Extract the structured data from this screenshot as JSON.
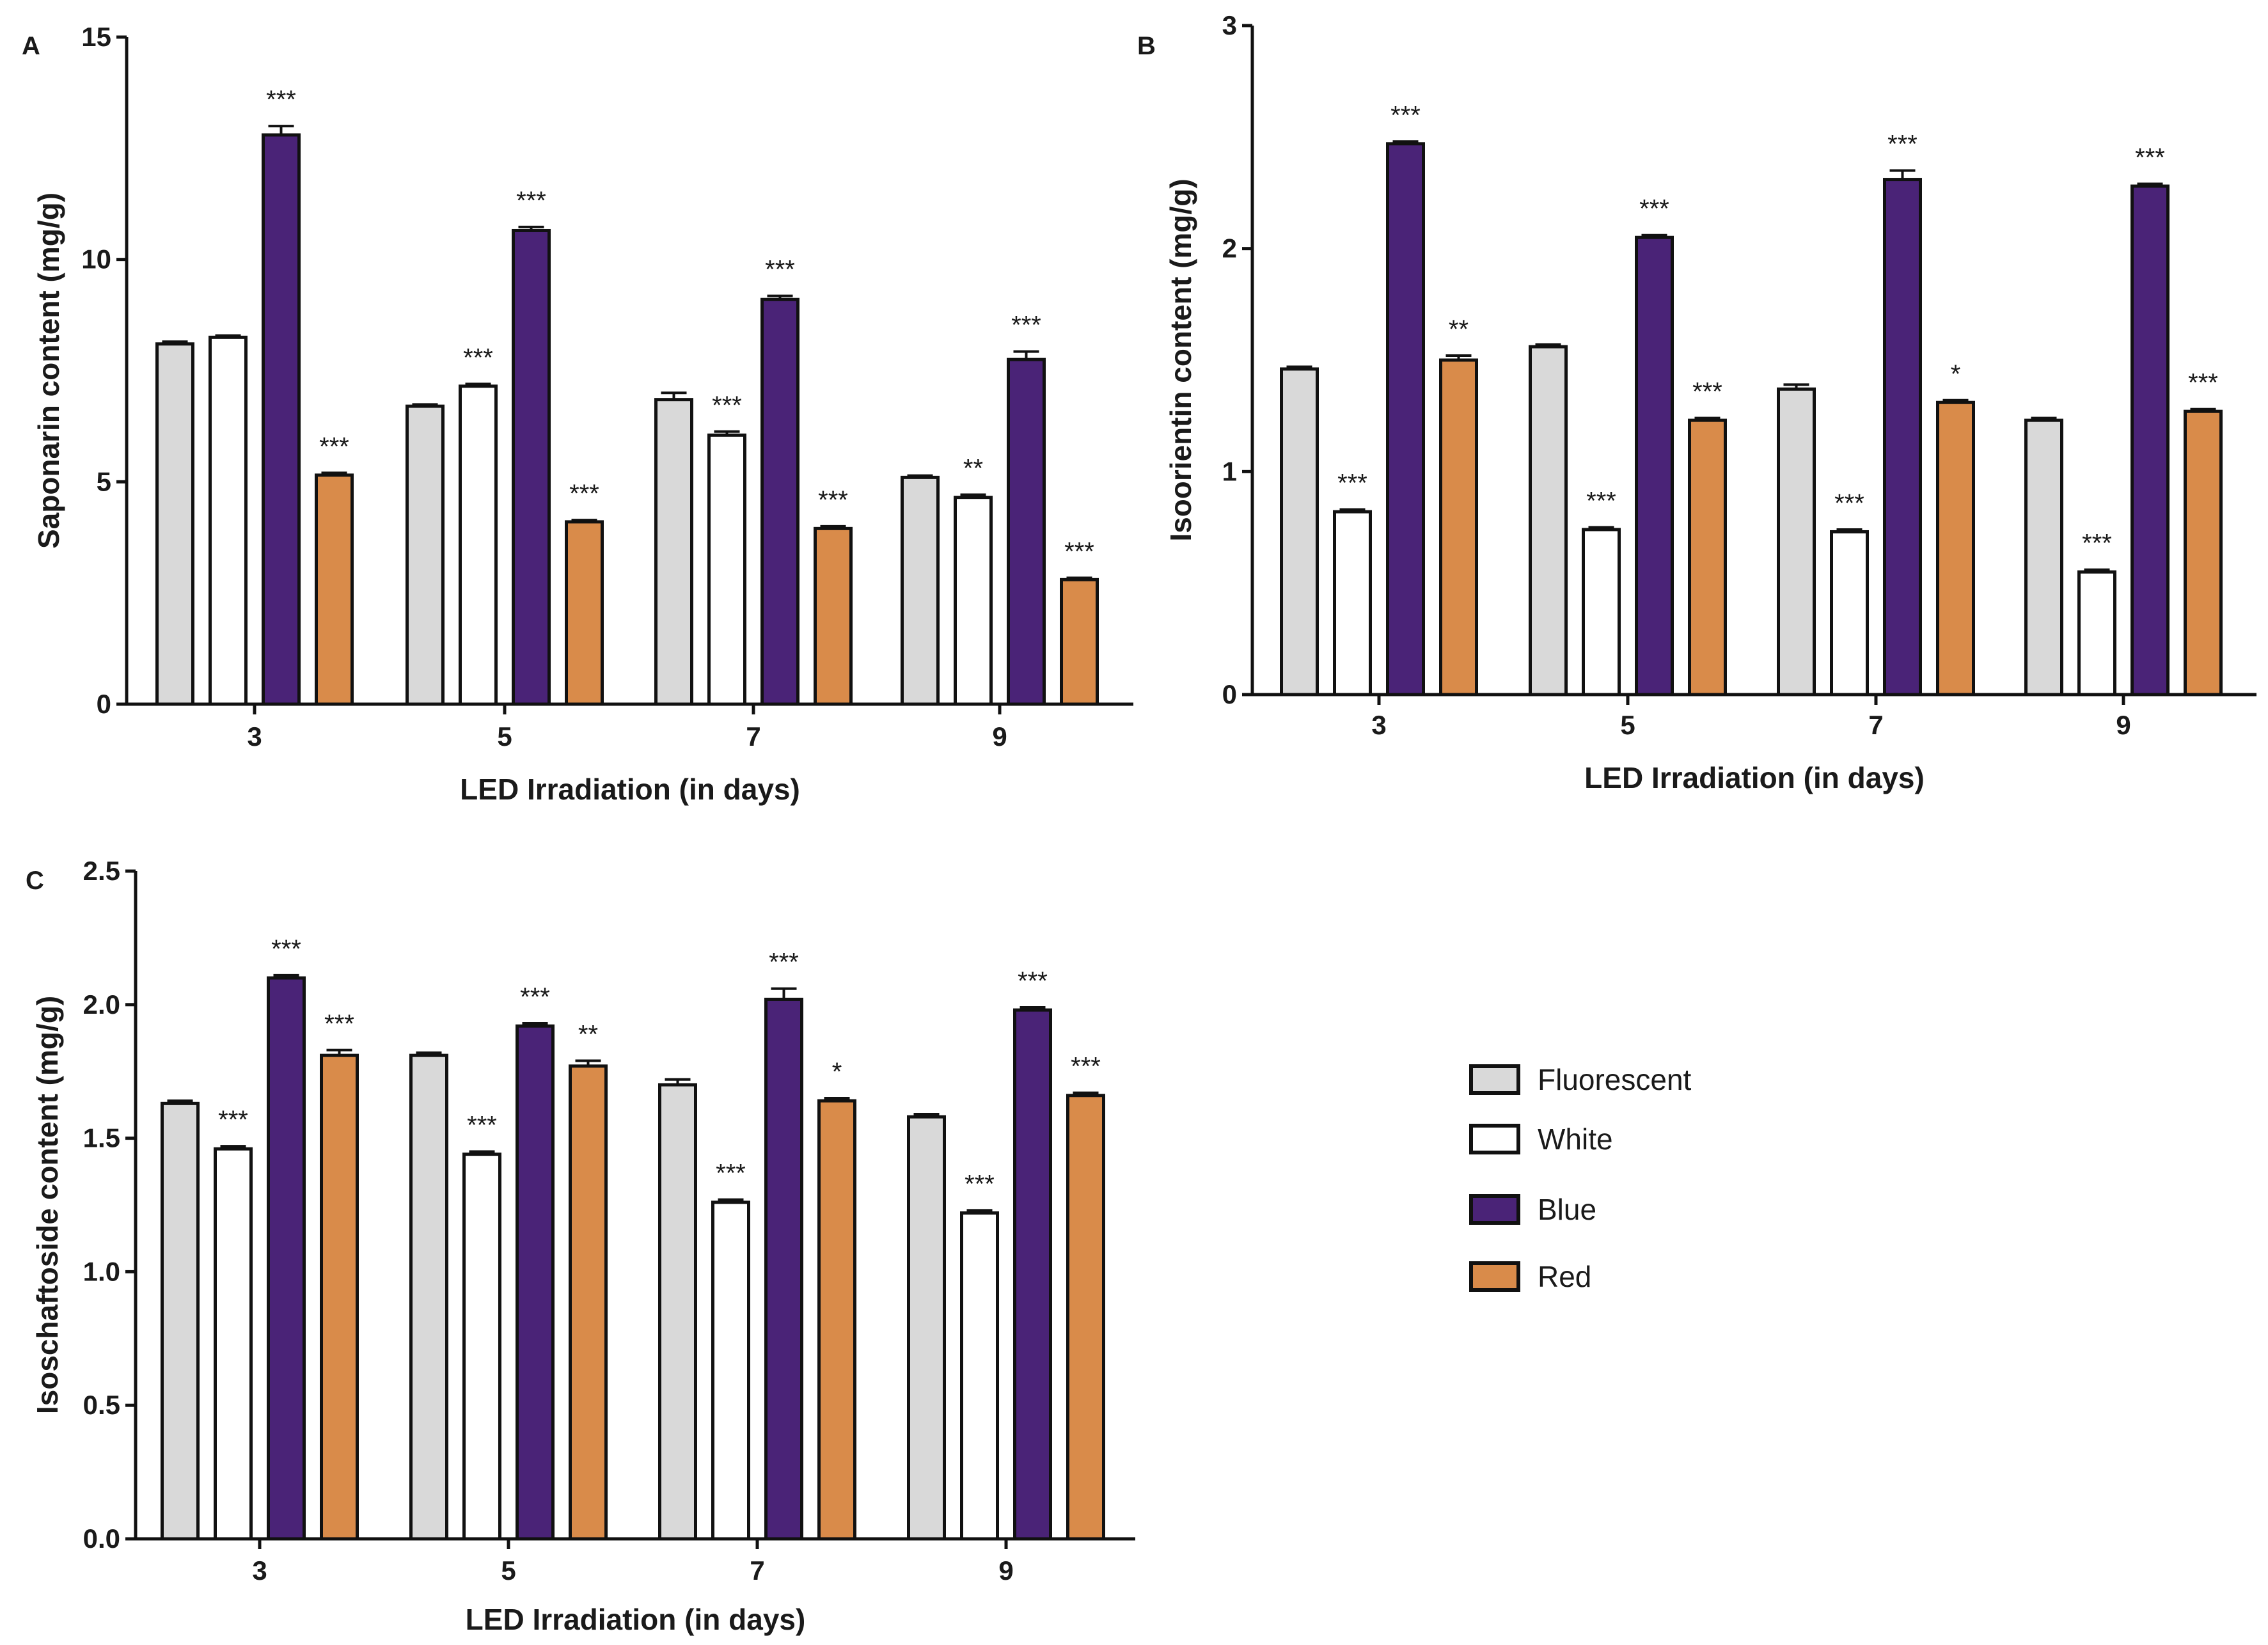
{
  "colors": {
    "Fluorescent": "#d9d9d9",
    "White": "#ffffff",
    "Blue": "#4a2377",
    "Red": "#d98b4a",
    "outline": "#111111"
  },
  "legend": {
    "items": [
      {
        "name": "Fluorescent",
        "color": "#d9d9d9"
      },
      {
        "name": "White",
        "color": "#ffffff"
      },
      {
        "name": "Blue",
        "color": "#4a2377"
      },
      {
        "name": "Red",
        "color": "#d98b4a"
      }
    ]
  },
  "chart_data": [
    {
      "panel": "A",
      "type": "bar",
      "title": "",
      "xlabel": "LED Irradiation (in days)",
      "ylabel": "Saponarin content (mg/g)",
      "ylim": [
        0,
        15
      ],
      "yticks": [
        "0",
        "5",
        "10",
        "15"
      ],
      "ytick_values": [
        0,
        5,
        10,
        15
      ],
      "categories": [
        "3",
        "5",
        "7",
        "9"
      ],
      "series": [
        {
          "name": "Fluorescent",
          "values": [
            8.1,
            6.7,
            6.85,
            5.1
          ],
          "errors": [
            0.05,
            0.04,
            0.15,
            0.04
          ],
          "sig": [
            "",
            "",
            "",
            ""
          ]
        },
        {
          "name": "White",
          "values": [
            8.25,
            7.15,
            6.05,
            4.65
          ],
          "errors": [
            0.04,
            0.05,
            0.08,
            0.06
          ],
          "sig": [
            "",
            "***",
            "***",
            "**"
          ]
        },
        {
          "name": "Blue",
          "values": [
            12.8,
            10.65,
            9.1,
            7.75
          ],
          "errors": [
            0.2,
            0.08,
            0.08,
            0.18
          ],
          "sig": [
            "***",
            "***",
            "***",
            "***"
          ]
        },
        {
          "name": "Red",
          "values": [
            5.15,
            4.1,
            3.95,
            2.8
          ],
          "errors": [
            0.05,
            0.04,
            0.05,
            0.04
          ],
          "sig": [
            "***",
            "***",
            "***",
            "***"
          ]
        }
      ]
    },
    {
      "panel": "B",
      "type": "bar",
      "title": "",
      "xlabel": "LED Irradiation (in days)",
      "ylabel": "Isoorientin content (mg/g)",
      "ylim": [
        0,
        3
      ],
      "yticks": [
        "0",
        "1",
        "2",
        "3"
      ],
      "ytick_values": [
        0,
        1,
        2,
        3
      ],
      "categories": [
        "3",
        "5",
        "7",
        "9"
      ],
      "series": [
        {
          "name": "Fluorescent",
          "values": [
            1.46,
            1.56,
            1.37,
            1.23
          ],
          "errors": [
            0.01,
            0.01,
            0.02,
            0.01
          ],
          "sig": [
            "",
            "",
            "",
            ""
          ]
        },
        {
          "name": "White",
          "values": [
            0.82,
            0.74,
            0.73,
            0.55
          ],
          "errors": [
            0.01,
            0.01,
            0.01,
            0.01
          ],
          "sig": [
            "***",
            "***",
            "***",
            "***"
          ]
        },
        {
          "name": "Blue",
          "values": [
            2.47,
            2.05,
            2.31,
            2.28
          ],
          "errors": [
            0.01,
            0.01,
            0.04,
            0.01
          ],
          "sig": [
            "***",
            "***",
            "***",
            "***"
          ]
        },
        {
          "name": "Red",
          "values": [
            1.5,
            1.23,
            1.31,
            1.27
          ],
          "errors": [
            0.02,
            0.01,
            0.01,
            0.01
          ],
          "sig": [
            "**",
            "***",
            "*",
            "***"
          ]
        }
      ]
    },
    {
      "panel": "C",
      "type": "bar",
      "title": "",
      "xlabel": "LED Irradiation (in days)",
      "ylabel": "Isoschaftoside content (mg/g)",
      "ylim": [
        0,
        2.5
      ],
      "yticks": [
        "0.0",
        "0.5",
        "1.0",
        "1.5",
        "2.0",
        "2.5"
      ],
      "ytick_values": [
        0,
        0.5,
        1,
        1.5,
        2,
        2.5
      ],
      "categories": [
        "3",
        "5",
        "7",
        "9"
      ],
      "series": [
        {
          "name": "Fluorescent",
          "values": [
            1.63,
            1.81,
            1.7,
            1.58
          ],
          "errors": [
            0.01,
            0.01,
            0.02,
            0.01
          ],
          "sig": [
            "",
            "",
            "",
            ""
          ]
        },
        {
          "name": "White",
          "values": [
            1.46,
            1.44,
            1.26,
            1.22
          ],
          "errors": [
            0.01,
            0.01,
            0.01,
            0.01
          ],
          "sig": [
            "***",
            "***",
            "***",
            "***"
          ]
        },
        {
          "name": "Blue",
          "values": [
            2.1,
            1.92,
            2.02,
            1.98
          ],
          "errors": [
            0.01,
            0.01,
            0.04,
            0.01
          ],
          "sig": [
            "***",
            "***",
            "***",
            "***"
          ]
        },
        {
          "name": "Red",
          "values": [
            1.81,
            1.77,
            1.64,
            1.66
          ],
          "errors": [
            0.02,
            0.02,
            0.01,
            0.01
          ],
          "sig": [
            "***",
            "**",
            "*",
            "***"
          ]
        }
      ]
    }
  ]
}
